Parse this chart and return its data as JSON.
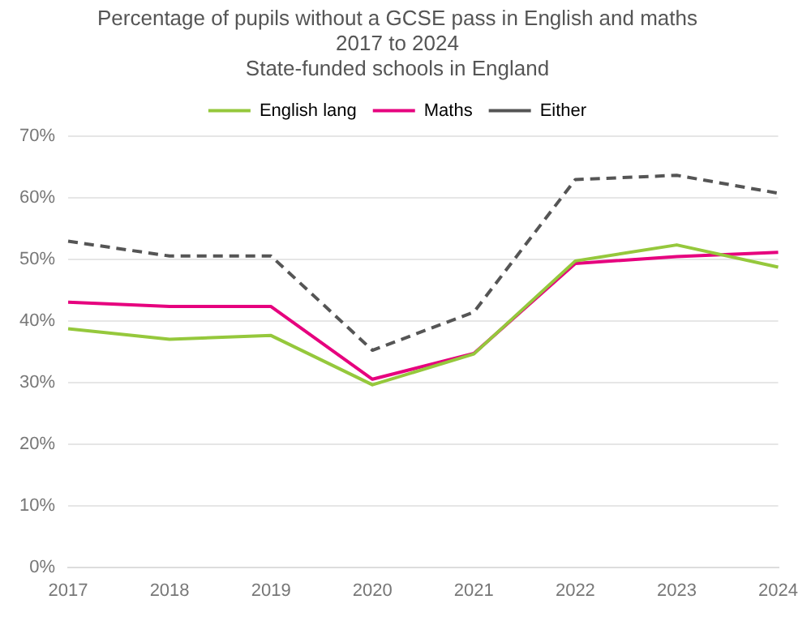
{
  "chart_data": {
    "type": "line",
    "title": "Percentage of pupils without a GCSE pass in English and maths",
    "subtitle": "2017 to 2024\nState-funded schools in England",
    "categories": [
      "2017",
      "2018",
      "2019",
      "2020",
      "2021",
      "2022",
      "2023",
      "2024"
    ],
    "series": [
      {
        "name": "English lang",
        "color": "#95c83c",
        "line_style": "solid",
        "values": [
          38.7,
          37.0,
          37.6,
          29.6,
          34.6,
          49.7,
          52.3,
          48.7
        ]
      },
      {
        "name": "Maths",
        "color": "#e6007e",
        "line_style": "solid",
        "values": [
          43.0,
          42.3,
          42.3,
          30.5,
          34.7,
          49.3,
          50.4,
          51.1
        ]
      },
      {
        "name": "Either",
        "color": "#555555",
        "line_style": "dashed",
        "values": [
          52.9,
          50.5,
          50.5,
          35.2,
          41.4,
          62.9,
          63.6,
          60.7
        ]
      }
    ],
    "ylim": [
      0,
      70
    ],
    "yticks": [
      {
        "value": 0,
        "label": "0%"
      },
      {
        "value": 10,
        "label": "10%"
      },
      {
        "value": 20,
        "label": "20%"
      },
      {
        "value": 30,
        "label": "30%"
      },
      {
        "value": 40,
        "label": "40%"
      },
      {
        "value": 50,
        "label": "50%"
      },
      {
        "value": 60,
        "label": "60%"
      },
      {
        "value": 70,
        "label": "70%"
      }
    ],
    "grid": "y",
    "legend": "top",
    "marker": "none"
  }
}
